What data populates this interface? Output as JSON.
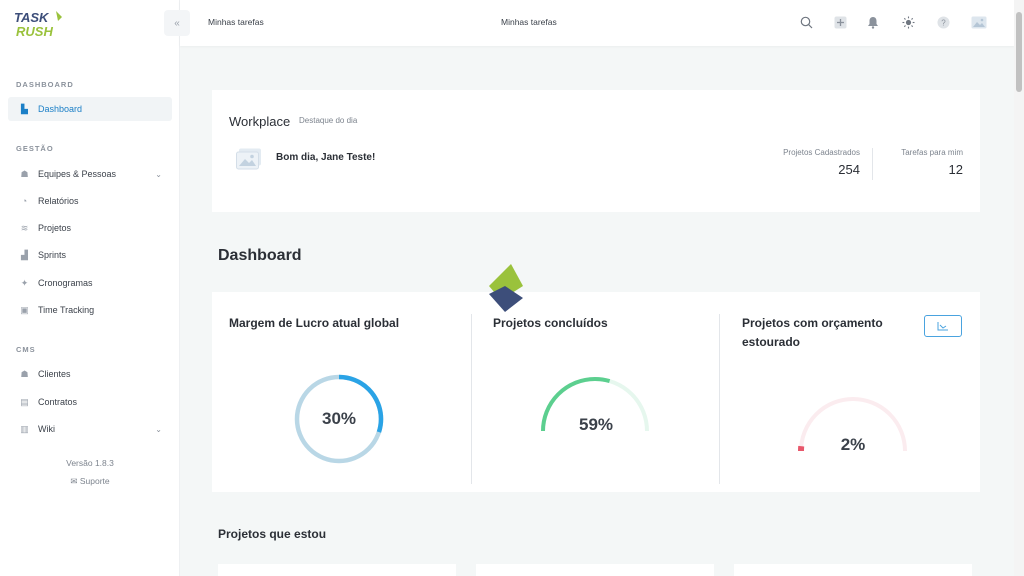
{
  "sidebar": {
    "sections": {
      "dashboard": "DASHBOARD",
      "gestao": "GESTÃO",
      "cms": "CMS"
    },
    "items": {
      "dashboard": "Dashboard",
      "equipes": "Equipes & Pessoas",
      "relatorios": "Relatórios",
      "projetos": "Projetos",
      "sprints": "Sprints",
      "cronogramas": "Cronogramas",
      "time_tracking": "Time Tracking",
      "clientes": "Clientes",
      "contratos": "Contratos",
      "wiki": "Wiki"
    },
    "version": "Versão 1.8.3",
    "support": "Suporte"
  },
  "topbar": {
    "breadcrumb": "Minhas tarefas",
    "center_title": "Minhas tarefas",
    "icons": [
      "search-icon",
      "add-icon",
      "bell-icon",
      "sun-icon",
      "help-icon",
      "avatar-icon"
    ]
  },
  "workplace": {
    "title": "Workplace",
    "subtitle": "Destaque do dia",
    "greeting": "Bom dia, Jane Teste!",
    "stats": {
      "projetos_label": "Projetos Cadastrados",
      "projetos_value": "254",
      "tarefas_label": "Tarefas para mim",
      "tarefas_value": "12"
    }
  },
  "dashboard": {
    "title": "Dashboard",
    "kpis": {
      "margem": {
        "title": "Margem de Lucro atual global",
        "value": "30%",
        "fraction": 0.3
      },
      "concluidos": {
        "title": "Projetos concluídos",
        "value": "59%",
        "fraction": 0.59
      },
      "estourado": {
        "title": "Projetos com orçamento estourado",
        "value": "2%",
        "fraction": 0.02
      }
    }
  },
  "projects_section": {
    "title": "Projetos que estou"
  },
  "colors": {
    "accent_blue": "#2aa3e6",
    "ring_track": "#b9d7e6",
    "green": "#5ccf8f",
    "green_track": "#e6f7ee",
    "red": "#e8576b",
    "red_track": "#fbecef",
    "logo_green": "#9ac23c",
    "logo_navy": "#3d4e7a"
  }
}
